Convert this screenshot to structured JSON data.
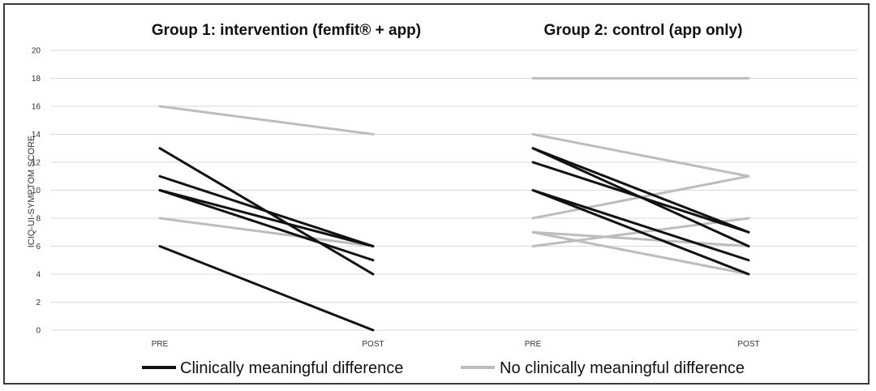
{
  "chart_data": {
    "type": "line",
    "ylabel": "ICIQ-UI-SYMPTOM SCORE",
    "ylim": [
      0,
      20
    ],
    "yticks": [
      "0",
      "2",
      "4",
      "6",
      "8",
      "10",
      "12",
      "14",
      "16",
      "18",
      "20"
    ],
    "x": [
      "PRE",
      "POST"
    ],
    "grid": true,
    "legend_placement": "bottom",
    "legend": [
      {
        "label": "Clinically meaningful difference",
        "color": "#111111"
      },
      {
        "label": "No clinically meaningful difference",
        "color": "#bdbdbd"
      }
    ],
    "panels": [
      {
        "title": "Group 1: intervention (femfit® + app)",
        "series": [
          {
            "group": "meaningful",
            "values": [
              13,
              4
            ]
          },
          {
            "group": "meaningful",
            "values": [
              11,
              6
            ]
          },
          {
            "group": "meaningful",
            "values": [
              10,
              6
            ]
          },
          {
            "group": "meaningful",
            "values": [
              10,
              5
            ]
          },
          {
            "group": "meaningful",
            "values": [
              6,
              0
            ]
          },
          {
            "group": "not_meaningful",
            "values": [
              16,
              14
            ]
          },
          {
            "group": "not_meaningful",
            "values": [
              8,
              6
            ]
          }
        ]
      },
      {
        "title": "Group 2: control (app only)",
        "series": [
          {
            "group": "meaningful",
            "values": [
              13,
              7
            ]
          },
          {
            "group": "meaningful",
            "values": [
              13,
              6
            ]
          },
          {
            "group": "meaningful",
            "values": [
              12,
              7
            ]
          },
          {
            "group": "meaningful",
            "values": [
              10,
              5
            ]
          },
          {
            "group": "meaningful",
            "values": [
              10,
              4
            ]
          },
          {
            "group": "not_meaningful",
            "values": [
              18,
              18
            ]
          },
          {
            "group": "not_meaningful",
            "values": [
              14,
              11
            ]
          },
          {
            "group": "not_meaningful",
            "values": [
              8,
              11
            ]
          },
          {
            "group": "not_meaningful",
            "values": [
              7,
              6
            ]
          },
          {
            "group": "not_meaningful",
            "values": [
              7,
              4
            ]
          },
          {
            "group": "not_meaningful",
            "values": [
              6,
              8
            ]
          }
        ]
      }
    ]
  }
}
